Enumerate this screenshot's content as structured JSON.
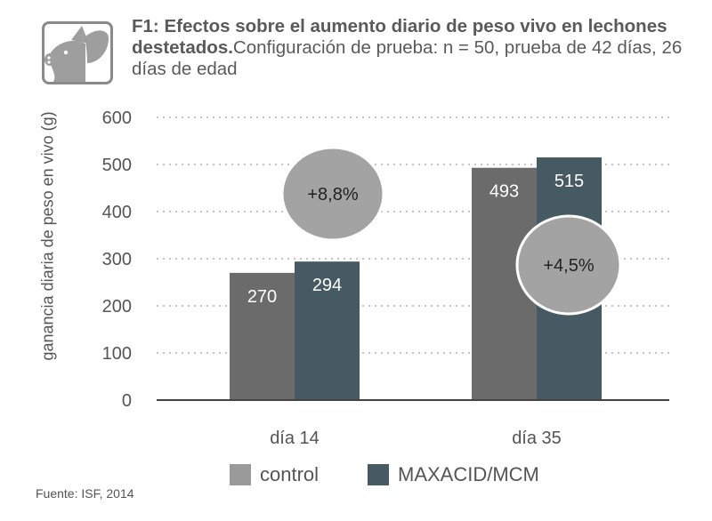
{
  "header": {
    "title_bold": "F1: Efectos sobre el aumento diario de peso vivo en lechones destetados.",
    "title_rest": "Configuración de prueba: n = 50, prueba de 42 días, 26 días de edad",
    "icon": "pig-icon"
  },
  "chart_data": {
    "type": "bar",
    "ylabel": "ganancia diaria de peso en vivo (g)",
    "xlabel": "",
    "ylim": [
      0,
      600
    ],
    "yticks": [
      0,
      100,
      200,
      300,
      400,
      500,
      600
    ],
    "grid": true,
    "categories": [
      "día 14",
      "día 35"
    ],
    "series": [
      {
        "name": "control",
        "color": "#6b6b6b",
        "values": [
          270,
          493
        ]
      },
      {
        "name": "MAXACID/MCM",
        "color": "#455a63",
        "values": [
          294,
          515
        ]
      }
    ],
    "value_labels": [
      [
        "270",
        "294"
      ],
      [
        "493",
        "515"
      ]
    ],
    "annotations": [
      "+8,8%",
      "+4,5%"
    ]
  },
  "legend": {
    "items": [
      {
        "label": "control",
        "color": "#9a9a9a"
      },
      {
        "label": "MAXACID/MCM",
        "color": "#455a63"
      }
    ]
  },
  "colors": {
    "axis": "#555555",
    "grid": "#b0b0b0",
    "bubble": "#a3a3a3"
  },
  "footer": {
    "source": "Fuente: ISF, 2014"
  }
}
